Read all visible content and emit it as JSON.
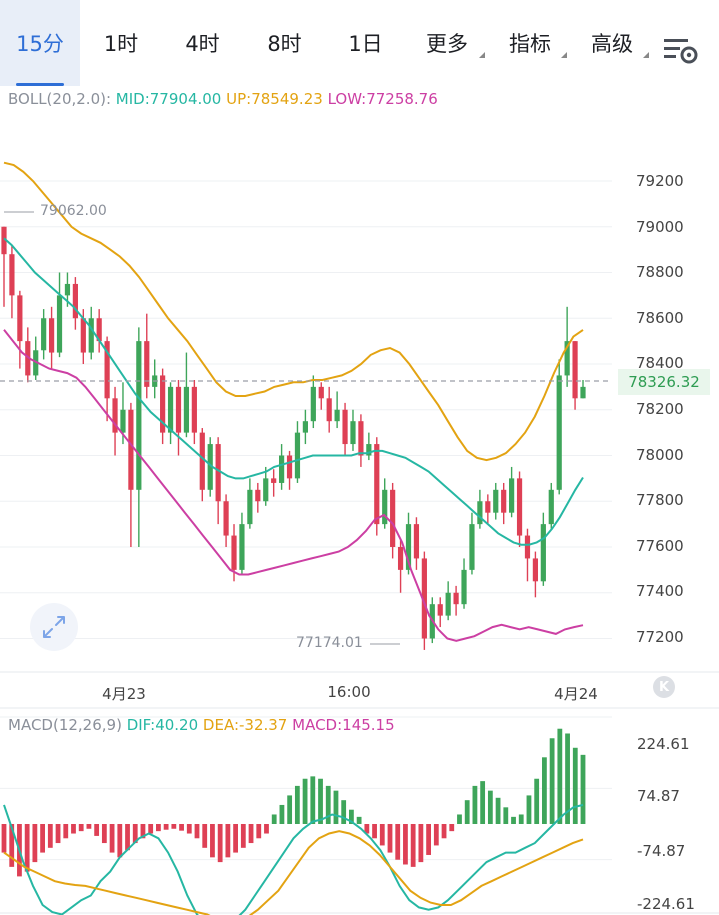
{
  "tabs": [
    {
      "label": "15分",
      "active": true
    },
    {
      "label": "1时"
    },
    {
      "label": "4时"
    },
    {
      "label": "8时"
    },
    {
      "label": "1日"
    },
    {
      "label": "更多",
      "dropdown": true
    },
    {
      "label": "指标",
      "dropdown": true
    },
    {
      "label": "高级",
      "dropdown": true
    }
  ],
  "icons": {
    "settings": "chart-settings-icon",
    "expand": "expand-icon",
    "k_logo": "k-logo-icon"
  },
  "boll": {
    "name": "BOLL(20,2.0):",
    "mid": "MID:77904.00",
    "up": "UP:78549.23",
    "low": "LOW:77258.76"
  },
  "macd": {
    "name": "MACD(12,26,9)",
    "dif": "DIF:40.20",
    "dea": "DEA:-32.37",
    "macd": "MACD:145.15"
  },
  "price_axis": [
    "79200",
    "79000",
    "78800",
    "78600",
    "78400",
    "78200",
    "78000",
    "77800",
    "77600",
    "77400",
    "77200"
  ],
  "macd_axis": [
    "224.61",
    "74.87",
    "-74.87",
    "-224.61"
  ],
  "time_axis": [
    "4月23",
    "16:00",
    "4月24"
  ],
  "high_mark": "79062.00",
  "low_mark": "77174.01",
  "current_price": "78326.32",
  "k_logo_text": "K",
  "colors": {
    "up": "#3ea55a",
    "down": "#de4055",
    "mid": "#26b7a3",
    "upper": "#e3a312",
    "lower": "#cc3fa3",
    "accent": "#2e6ed6"
  },
  "chart_data": {
    "type": "candlestick",
    "interval": "15分",
    "price_range": [
      77050,
      79420
    ],
    "candles_ohlc": [
      [
        79000,
        78880,
        79000,
        78650
      ],
      [
        78880,
        78700,
        78920,
        78600
      ],
      [
        78700,
        78500,
        78720,
        78380
      ],
      [
        78500,
        78350,
        78560,
        78320
      ],
      [
        78350,
        78460,
        78520,
        78330
      ],
      [
        78460,
        78600,
        78640,
        78420
      ],
      [
        78600,
        78450,
        78650,
        78380
      ],
      [
        78450,
        78700,
        78800,
        78430
      ],
      [
        78700,
        78750,
        78800,
        78650
      ],
      [
        78750,
        78600,
        78780,
        78550
      ],
      [
        78600,
        78450,
        78640,
        78400
      ],
      [
        78450,
        78600,
        78650,
        78420
      ],
      [
        78600,
        78500,
        78640,
        78450
      ],
      [
        78500,
        78250,
        78520,
        78150
      ],
      [
        78250,
        78100,
        78300,
        78000
      ],
      [
        78100,
        78200,
        78320,
        78050
      ],
      [
        78200,
        77850,
        78230,
        77600
      ],
      [
        77850,
        78500,
        78560,
        77600
      ],
      [
        78500,
        78300,
        78620,
        78250
      ],
      [
        78300,
        78350,
        78420,
        78250
      ],
      [
        78350,
        78100,
        78380,
        78050
      ],
      [
        78100,
        78300,
        78320,
        78050
      ],
      [
        78300,
        78100,
        78330,
        78000
      ],
      [
        78100,
        78300,
        78450,
        78080
      ],
      [
        78300,
        78100,
        78330,
        78050
      ],
      [
        78100,
        77850,
        78120,
        77800
      ],
      [
        77850,
        78050,
        78080,
        77820
      ],
      [
        78050,
        77800,
        78080,
        77700
      ],
      [
        77800,
        77650,
        77830,
        77600
      ],
      [
        77650,
        77500,
        77700,
        77450
      ],
      [
        77500,
        77700,
        77750,
        77480
      ],
      [
        77700,
        77850,
        77900,
        77680
      ],
      [
        77850,
        77800,
        77880,
        77750
      ],
      [
        77800,
        77900,
        77950,
        77780
      ],
      [
        77900,
        77880,
        77940,
        77820
      ],
      [
        77880,
        78000,
        78050,
        77850
      ],
      [
        78000,
        77900,
        78020,
        77850
      ],
      [
        77900,
        78100,
        78150,
        77880
      ],
      [
        78100,
        78150,
        78200,
        78050
      ],
      [
        78150,
        78300,
        78350,
        78120
      ],
      [
        78300,
        78250,
        78320,
        78200
      ],
      [
        78250,
        78150,
        78300,
        78100
      ],
      [
        78150,
        78200,
        78280,
        78120
      ],
      [
        78200,
        78050,
        78230,
        78000
      ],
      [
        78050,
        78150,
        78200,
        78020
      ],
      [
        78150,
        78000,
        78180,
        77950
      ],
      [
        78000,
        78050,
        78100,
        77980
      ],
      [
        78050,
        77700,
        78080,
        77650
      ],
      [
        77700,
        77850,
        77900,
        77680
      ],
      [
        77850,
        77600,
        77880,
        77550
      ],
      [
        77600,
        77500,
        77630,
        77400
      ],
      [
        77500,
        77700,
        77750,
        77480
      ],
      [
        77700,
        77550,
        77730,
        77500
      ],
      [
        77550,
        77200,
        77580,
        77150
      ],
      [
        77200,
        77350,
        77380,
        77180
      ],
      [
        77350,
        77300,
        77380,
        77250
      ],
      [
        77300,
        77400,
        77450,
        77280
      ],
      [
        77400,
        77350,
        77430,
        77300
      ],
      [
        77350,
        77500,
        77550,
        77330
      ],
      [
        77500,
        77700,
        77750,
        77480
      ],
      [
        77700,
        77800,
        77850,
        77680
      ],
      [
        77800,
        77750,
        77830,
        77700
      ],
      [
        77750,
        77850,
        77880,
        77720
      ],
      [
        77850,
        77750,
        77880,
        77700
      ],
      [
        77750,
        77900,
        77950,
        77730
      ],
      [
        77900,
        77650,
        77930,
        77600
      ],
      [
        77650,
        77550,
        77680,
        77450
      ],
      [
        77550,
        77450,
        77580,
        77380
      ],
      [
        77450,
        77700,
        77750,
        77430
      ],
      [
        77700,
        77850,
        77880,
        77680
      ],
      [
        77850,
        78350,
        78420,
        77830
      ],
      [
        78350,
        78500,
        78650,
        78300
      ],
      [
        78500,
        78250,
        78500,
        78200
      ],
      [
        78250,
        78300,
        78330,
        78250
      ]
    ],
    "series": [
      {
        "name": "MID",
        "values": [
          78950,
          78920,
          78880,
          78840,
          78800,
          78770,
          78740,
          78710,
          78680,
          78650,
          78610,
          78570,
          78520,
          78470,
          78420,
          78370,
          78320,
          78270,
          78230,
          78190,
          78160,
          78130,
          78100,
          78070,
          78040,
          78010,
          77980,
          77950,
          77930,
          77910,
          77900,
          77900,
          77910,
          77920,
          77930,
          77950,
          77960,
          77970,
          77980,
          77990,
          78000,
          78000,
          78000,
          78000,
          78000,
          78000,
          78010,
          78010,
          78020,
          78020,
          78010,
          78000,
          77990,
          77970,
          77950,
          77930,
          77900,
          77870,
          77840,
          77810,
          77780,
          77750,
          77720,
          77690,
          77660,
          77640,
          77620,
          77610,
          77610,
          77620,
          77640,
          77680,
          77730,
          77790,
          77850,
          77904
        ]
      },
      {
        "name": "UP",
        "values": [
          79280,
          79270,
          79240,
          79200,
          79150,
          79100,
          79050,
          79000,
          78970,
          78950,
          78930,
          78900,
          78870,
          78830,
          78780,
          78720,
          78660,
          78600,
          78550,
          78500,
          78440,
          78380,
          78320,
          78280,
          78260,
          78260,
          78270,
          78280,
          78300,
          78310,
          78320,
          78320,
          78330,
          78330,
          78340,
          78350,
          78370,
          78400,
          78440,
          78460,
          78470,
          78450,
          78400,
          78340,
          78280,
          78220,
          78150,
          78080,
          78020,
          77990,
          77980,
          77990,
          78010,
          78050,
          78100,
          78170,
          78260,
          78360,
          78450,
          78520,
          78549
        ]
      },
      {
        "name": "LOW",
        "values": [
          78550,
          78500,
          78450,
          78420,
          78400,
          78380,
          78370,
          78360,
          78340,
          78300,
          78250,
          78200,
          78150,
          78100,
          78050,
          78000,
          77950,
          77900,
          77850,
          77800,
          77750,
          77700,
          77650,
          77600,
          77550,
          77500,
          77480,
          77480,
          77490,
          77500,
          77510,
          77520,
          77530,
          77540,
          77550,
          77560,
          77570,
          77580,
          77600,
          77630,
          77670,
          77720,
          77740,
          77700,
          77620,
          77500,
          77400,
          77300,
          77240,
          77200,
          77190,
          77200,
          77210,
          77230,
          77250,
          77260,
          77250,
          77240,
          77250,
          77240,
          77230,
          77220,
          77240,
          77250,
          77258
        ]
      },
      {
        "name": "DIF",
        "values": [
          40,
          -20,
          -80,
          -130,
          -170,
          -185,
          -190,
          -175,
          -160,
          -150,
          -120,
          -100,
          -70,
          -50,
          -30,
          -20,
          -30,
          -60,
          -100,
          -150,
          -190,
          -210,
          -220,
          -215,
          -200,
          -180,
          -150,
          -120,
          -90,
          -60,
          -30,
          -10,
          5,
          10,
          20,
          15,
          5,
          -10,
          -30,
          -55,
          -90,
          -130,
          -160,
          -175,
          -180,
          -175,
          -160,
          -140,
          -120,
          -100,
          -80,
          -70,
          -60,
          -60,
          -50,
          -40,
          -20,
          0,
          20,
          35,
          40
        ]
      },
      {
        "name": "DEA",
        "values": [
          -60,
          -75,
          -90,
          -100,
          -110,
          -120,
          -125,
          -128,
          -130,
          -135,
          -140,
          -145,
          -150,
          -155,
          -160,
          -165,
          -170,
          -175,
          -180,
          -185,
          -190,
          -200,
          -210,
          -205,
          -195,
          -180,
          -160,
          -140,
          -110,
          -80,
          -50,
          -30,
          -20,
          -15,
          -20,
          -30,
          -45,
          -65,
          -90,
          -115,
          -140,
          -155,
          -165,
          -170,
          -170,
          -160,
          -145,
          -130,
          -120,
          -110,
          -100,
          -90,
          -80,
          -70,
          -60,
          -50,
          -40,
          -32.37
        ]
      }
    ],
    "macd_hist": [
      -60,
      -90,
      -110,
      -100,
      -80,
      -60,
      -50,
      -40,
      -30,
      -20,
      -15,
      -10,
      -25,
      -40,
      -60,
      -70,
      -55,
      -40,
      -30,
      -20,
      -15,
      -12,
      -10,
      -14,
      -20,
      -30,
      -50,
      -70,
      -80,
      -70,
      -60,
      -50,
      -40,
      -30,
      -20,
      20,
      40,
      60,
      80,
      95,
      100,
      95,
      80,
      70,
      50,
      30,
      15,
      -20,
      -30,
      -45,
      -60,
      -75,
      -85,
      -90,
      -80,
      -65,
      -45,
      -30,
      -15,
      20,
      50,
      80,
      90,
      70,
      55,
      35,
      15,
      20,
      60,
      95,
      140,
      180,
      200,
      190,
      160,
      145.15
    ]
  }
}
